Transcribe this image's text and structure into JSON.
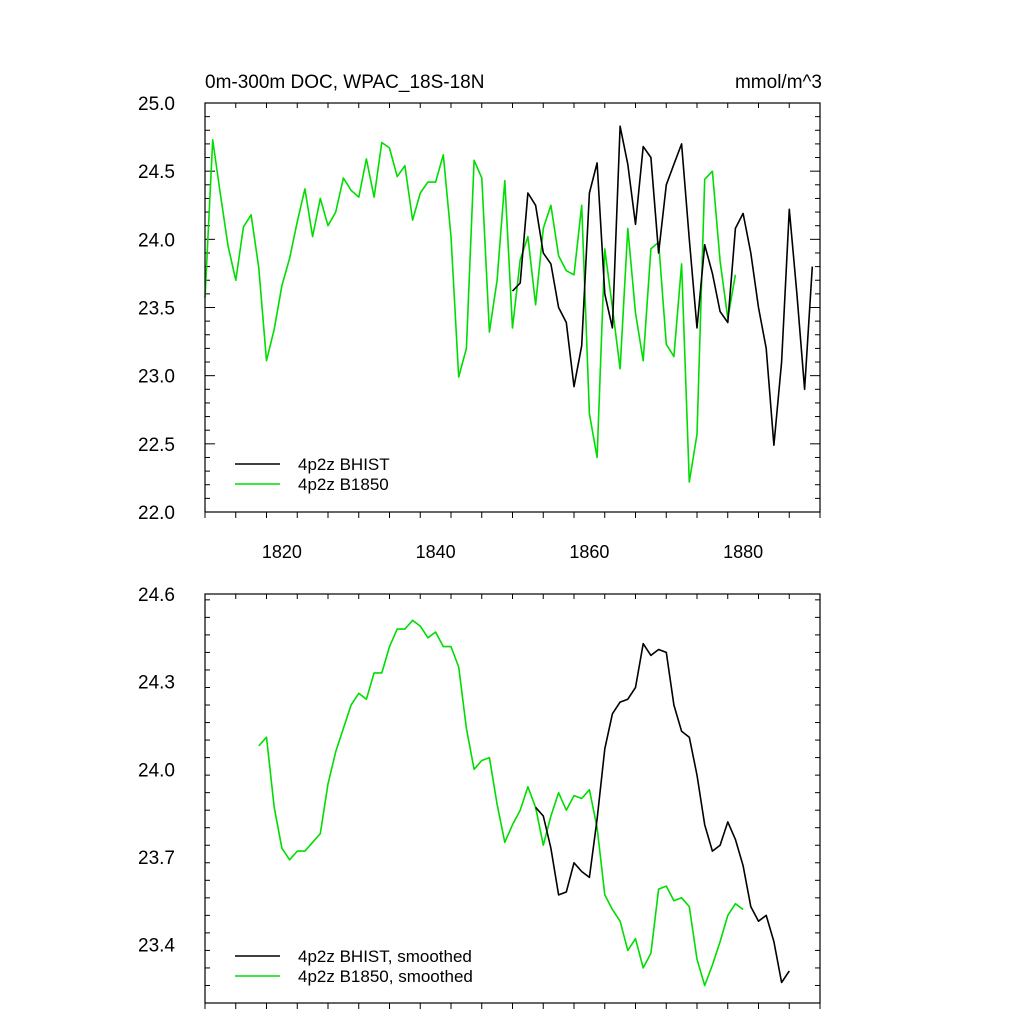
{
  "chart_data": [
    {
      "type": "line",
      "title": "0m-300m DOC, WPAC_18S-18N",
      "units": "mmol/m^3",
      "xlim": [
        1810,
        1890
      ],
      "ylim": [
        22.0,
        25.0
      ],
      "xticks": [
        1820,
        1840,
        1860,
        1880
      ],
      "yticks": [
        22.0,
        22.5,
        23.0,
        23.5,
        24.0,
        24.5,
        25.0
      ],
      "ytick_labels": [
        "22.0",
        "22.5",
        "23.0",
        "23.5",
        "24.0",
        "24.5",
        "25.0"
      ],
      "legend_position": "bottom-left",
      "series": [
        {
          "name": "4p2z BHIST",
          "color": "#000000",
          "x_start": 1850,
          "values": [
            23.62,
            23.68,
            24.34,
            24.25,
            23.9,
            23.82,
            23.5,
            23.39,
            22.92,
            23.22,
            24.34,
            24.56,
            23.6,
            23.35,
            24.83,
            24.55,
            24.11,
            24.68,
            24.6,
            23.9,
            24.4,
            24.55,
            24.7,
            24.0,
            23.35,
            23.96,
            23.75,
            23.47,
            23.39,
            24.08,
            24.19,
            23.9,
            23.5,
            23.2,
            22.49,
            23.1,
            24.22,
            23.6,
            22.9,
            23.8
          ]
        },
        {
          "name": "4p2z B1850",
          "color": "#00dd00",
          "x_start": 1810,
          "values": [
            23.57,
            24.73,
            24.33,
            23.95,
            23.7,
            24.09,
            24.18,
            23.79,
            23.11,
            23.34,
            23.66,
            23.86,
            24.13,
            24.37,
            24.02,
            24.3,
            24.1,
            24.2,
            24.45,
            24.36,
            24.31,
            24.59,
            24.31,
            24.71,
            24.67,
            24.46,
            24.54,
            24.14,
            24.34,
            24.42,
            24.42,
            24.62,
            24.02,
            22.99,
            23.2,
            24.58,
            24.45,
            23.32,
            23.7,
            24.43,
            23.35,
            23.85,
            24.02,
            23.52,
            24.08,
            24.25,
            23.88,
            23.77,
            23.74,
            24.25,
            22.72,
            22.4,
            23.93,
            23.5,
            23.05,
            24.08,
            23.46,
            23.11,
            23.93,
            23.98,
            23.23,
            23.14,
            23.82,
            22.22,
            22.57,
            24.44,
            24.5,
            23.84,
            23.42,
            23.74
          ]
        }
      ]
    },
    {
      "type": "line",
      "title": "",
      "xlim": [
        1810,
        1890
      ],
      "ylim": [
        23.2,
        24.6
      ],
      "xticks": [
        1820,
        1840,
        1860,
        1880
      ],
      "yticks": [
        23.4,
        23.7,
        24.0,
        24.3,
        24.6
      ],
      "ytick_labels": [
        "23.4",
        "23.7",
        "24.0",
        "24.3",
        "24.6"
      ],
      "legend_position": "bottom-left",
      "series": [
        {
          "name": "4p2z BHIST, smoothed",
          "color": "#000000",
          "x_start": 1853,
          "values": [
            23.87,
            23.84,
            23.73,
            23.57,
            23.58,
            23.68,
            23.65,
            23.63,
            23.83,
            24.07,
            24.19,
            24.23,
            24.24,
            24.28,
            24.43,
            24.39,
            24.41,
            24.4,
            24.22,
            24.13,
            24.11,
            23.98,
            23.81,
            23.72,
            23.74,
            23.82,
            23.76,
            23.67,
            23.53,
            23.48,
            23.5,
            23.41,
            23.27,
            23.31
          ]
        },
        {
          "name": "4p2z B1850, smoothed",
          "color": "#00dd00",
          "x_start": 1817,
          "values": [
            24.08,
            24.11,
            23.87,
            23.73,
            23.69,
            23.72,
            23.72,
            23.75,
            23.78,
            23.95,
            24.06,
            24.14,
            24.22,
            24.26,
            24.24,
            24.33,
            24.33,
            24.42,
            24.48,
            24.48,
            24.51,
            24.49,
            24.45,
            24.47,
            24.42,
            24.42,
            24.35,
            24.14,
            24.0,
            24.03,
            24.04,
            23.88,
            23.75,
            23.81,
            23.86,
            23.94,
            23.87,
            23.74,
            23.84,
            23.92,
            23.86,
            23.91,
            23.9,
            23.93,
            23.8,
            23.57,
            23.52,
            23.48,
            23.38,
            23.42,
            23.32,
            23.37,
            23.59,
            23.6,
            23.55,
            23.56,
            23.53,
            23.35,
            23.26,
            23.33,
            23.41,
            23.5,
            23.54,
            23.52
          ]
        }
      ]
    }
  ]
}
